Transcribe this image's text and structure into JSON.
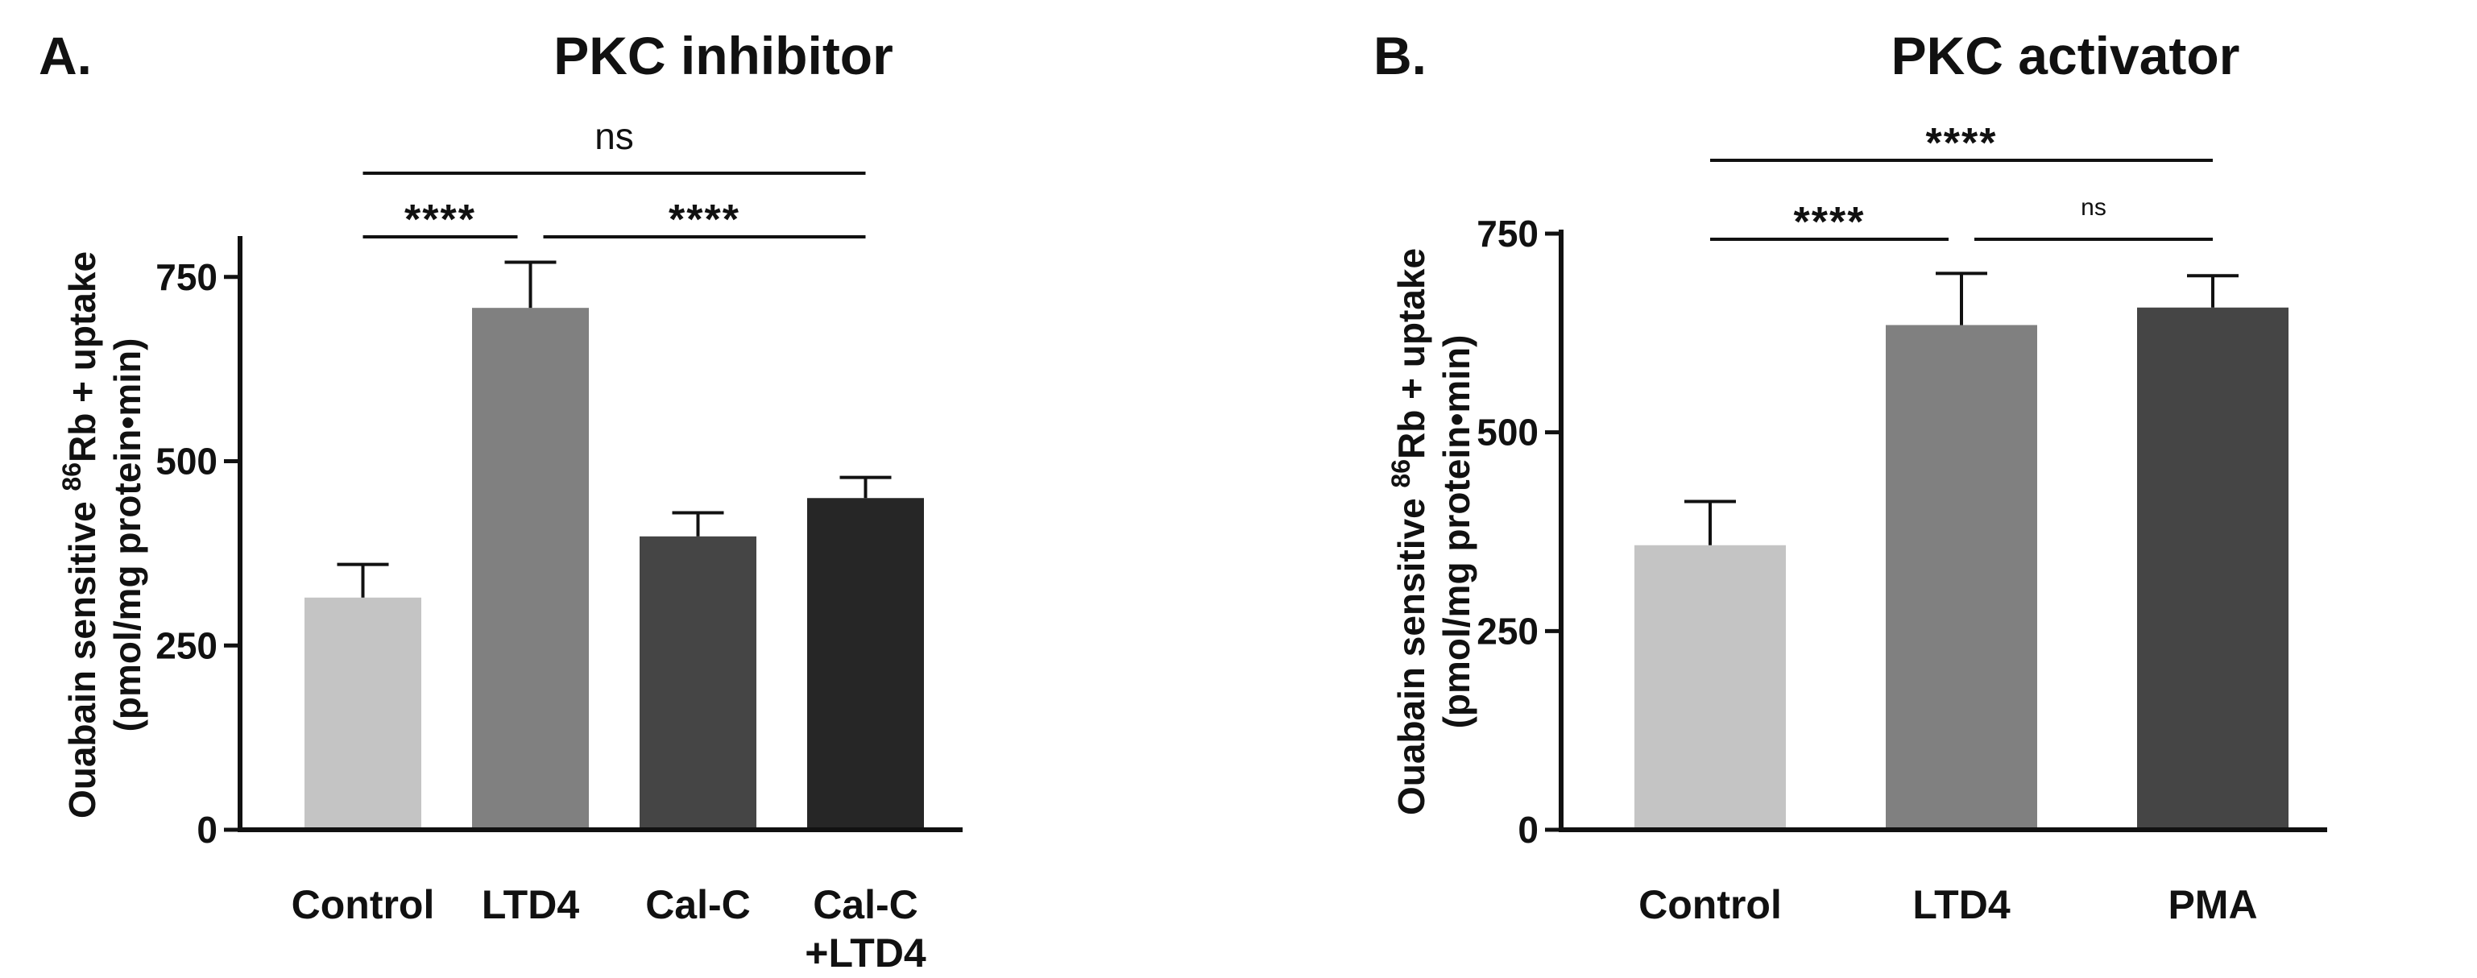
{
  "chart_data": [
    {
      "type": "bar",
      "panel_label": "A.",
      "title": "PKC inhibitor",
      "ylabel": {
        "pre": "Ouabain sensitive ",
        "sup": "86",
        "post": "Rb + uptake",
        "line2": "(pmol/mg protein•min)"
      },
      "ylim": [
        0,
        800
      ],
      "ticks": [
        0,
        250,
        500,
        750
      ],
      "tick_labels": [
        "0",
        "250",
        "500",
        "750"
      ],
      "categories": [
        "Control",
        "LTD4",
        "Cal-C",
        "Cal-C\n+LTD4"
      ],
      "values": [
        315,
        708,
        398,
        450
      ],
      "errors": [
        45,
        62,
        32,
        28
      ],
      "colors": [
        "#c4c4c4",
        "#808080",
        "#454545",
        "#262626"
      ],
      "significance": [
        {
          "from": 0,
          "to": 3,
          "label": "ns",
          "level": 2
        },
        {
          "from": 0,
          "to": 1,
          "label": "****",
          "level": 1
        },
        {
          "from": 1,
          "to": 3,
          "label": "****",
          "level": 1
        }
      ]
    },
    {
      "type": "bar",
      "panel_label": "B.",
      "title": "PKC activator",
      "ylabel": {
        "pre": "Ouabain sensitive ",
        "sup": "86",
        "post": "Rb + uptake",
        "line2": "(pmol/mg protein•min)"
      },
      "ylim": [
        0,
        750
      ],
      "ticks": [
        0,
        250,
        500,
        750
      ],
      "tick_labels": [
        "0",
        "250",
        "500",
        "750"
      ],
      "categories": [
        "Control",
        "LTD4",
        "PMA"
      ],
      "values": [
        358,
        635,
        657
      ],
      "errors": [
        55,
        65,
        40
      ],
      "colors": [
        "#c4c4c4",
        "#808080",
        "#454545"
      ],
      "significance": [
        {
          "from": 0,
          "to": 2,
          "label": "****",
          "level": 2
        },
        {
          "from": 0,
          "to": 1,
          "label": "****",
          "level": 1
        },
        {
          "from": 1,
          "to": 2,
          "label": "ns",
          "level": 1
        }
      ]
    }
  ]
}
